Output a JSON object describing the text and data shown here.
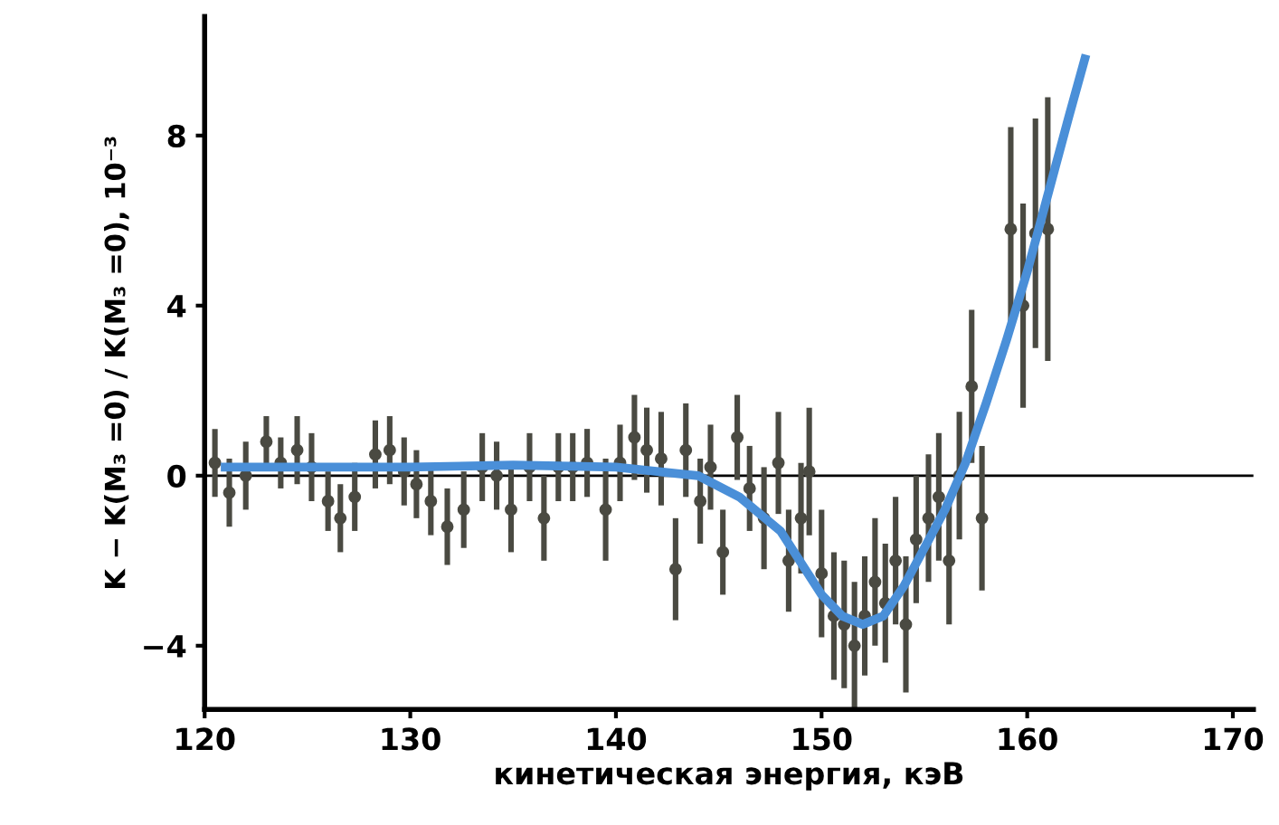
{
  "chart_data": {
    "type": "scatter",
    "xlabel": "кинетическая энергия, кэВ",
    "ylabel": "K − K(M₃ =0) / K(M₃ =0), 10⁻³",
    "xlim": [
      120,
      171
    ],
    "xticks": [
      120,
      130,
      140,
      150,
      160,
      170
    ],
    "ylim": [
      -5.5,
      10.8
    ],
    "yticks": [
      -4,
      0,
      4,
      8
    ],
    "grid": false,
    "legend": false,
    "marker": "circle",
    "ref_lines": [
      {
        "axis": "y",
        "value": 0,
        "color": "#000000"
      }
    ],
    "series": [
      {
        "color": "#4a4a42",
        "x": [
          120.5,
          121.2,
          122,
          123,
          123.7,
          124.5,
          125.2,
          126,
          126.6,
          127.3,
          128.3,
          129,
          129.7,
          130.3,
          131,
          131.8,
          132.6,
          133.5,
          134.2,
          134.9,
          135.8,
          136.5,
          137.2,
          137.9,
          138.6,
          139.5,
          140.2,
          140.9,
          141.5,
          142.2,
          142.9,
          143.4,
          144.1,
          144.6,
          145.2,
          145.9,
          146.5,
          147.2,
          147.9,
          148.4,
          149.0,
          149.4,
          150.0,
          150.6,
          151.1,
          151.6,
          152.1,
          152.6,
          153.1,
          153.6,
          154.1,
          154.6,
          155.2,
          155.7,
          156.2,
          156.7,
          157.3,
          157.8,
          159.2,
          159.8,
          160.4,
          161.0
        ],
        "values": [
          0.3,
          -0.4,
          0,
          0.8,
          0.3,
          0.6,
          0.2,
          -0.6,
          -1.0,
          -0.5,
          0.5,
          0.6,
          0.1,
          -0.2,
          -0.6,
          -1.2,
          -0.8,
          0.2,
          0.0,
          -0.8,
          0.2,
          -1.0,
          0.2,
          0.2,
          0.3,
          -0.8,
          0.3,
          0.9,
          0.6,
          0.4,
          -2.2,
          0.6,
          -0.6,
          0.2,
          -1.8,
          0.9,
          -0.3,
          -1.0,
          0.3,
          -2.0,
          -1.0,
          0.1,
          -2.3,
          -3.3,
          -3.5,
          -4.0,
          -3.3,
          -2.5,
          -3.0,
          -2.0,
          -3.5,
          -1.5,
          -1.0,
          -0.5,
          -2.0,
          0.0,
          2.1,
          -1.0,
          5.8,
          4.0,
          5.7,
          5.8
        ],
        "errors": [
          0.8,
          0.8,
          0.8,
          0.6,
          0.6,
          0.8,
          0.8,
          0.7,
          0.8,
          0.8,
          0.8,
          0.8,
          0.8,
          0.8,
          0.8,
          0.9,
          0.9,
          0.8,
          0.8,
          1.0,
          0.8,
          1.0,
          0.8,
          0.8,
          0.8,
          1.2,
          0.9,
          1.0,
          1.0,
          1.1,
          1.2,
          1.1,
          1.0,
          1.0,
          1.0,
          1.0,
          1.0,
          1.2,
          1.2,
          1.2,
          1.3,
          1.5,
          1.5,
          1.5,
          1.5,
          1.5,
          1.4,
          1.5,
          1.4,
          1.5,
          1.6,
          1.5,
          1.5,
          1.5,
          1.5,
          1.5,
          1.8,
          1.7,
          2.4,
          2.4,
          2.7,
          3.1
        ]
      },
      {
        "type": "line",
        "color": "#4a8fd8",
        "marker": "none",
        "line_style": "solid",
        "x": [
          121,
          125,
          130,
          135,
          140,
          144,
          146,
          148,
          150,
          151,
          152,
          153,
          154,
          155,
          156,
          157,
          158,
          159,
          160,
          161,
          162,
          162.8
        ],
        "values": [
          0.2,
          0.2,
          0.2,
          0.25,
          0.2,
          0,
          -0.5,
          -1.3,
          -2.8,
          -3.3,
          -3.5,
          -3.3,
          -2.6,
          -1.7,
          -0.8,
          0.3,
          1.7,
          3.2,
          4.8,
          6.6,
          8.4,
          9.8
        ]
      }
    ]
  }
}
